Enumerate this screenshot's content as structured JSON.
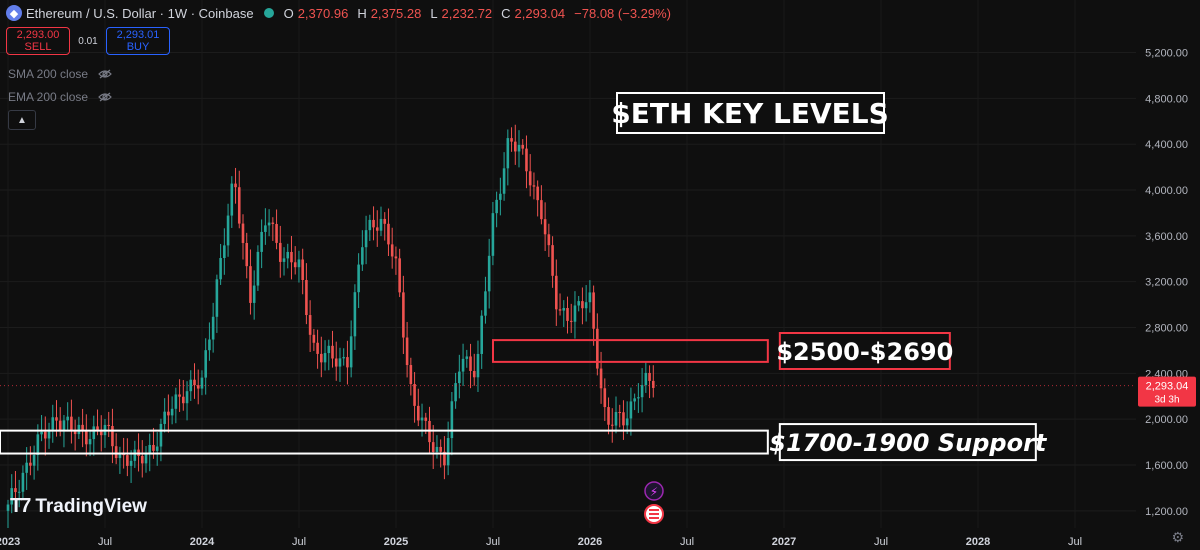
{
  "header": {
    "title": "Ethereum / U.S. Dollar · 1W · Coinbase",
    "ohlc": [
      {
        "label": "O",
        "value": "2,370.96"
      },
      {
        "label": "H",
        "value": "2,375.28"
      },
      {
        "label": "L",
        "value": "2,232.72"
      },
      {
        "label": "C",
        "value": "2,293.04"
      }
    ],
    "change": "−78.08 (−3.29%)"
  },
  "trade": {
    "sell_price": "2,293.00",
    "sell_label": "SELL",
    "spread": "0.01",
    "buy_price": "2,293.01",
    "buy_label": "BUY"
  },
  "indicators": [
    "SMA 200 close",
    "EMA 200 close"
  ],
  "branding": {
    "name": "TradingView"
  },
  "colors": {
    "up": "#26a69a",
    "down": "#ef5350",
    "annotation_red": "#f23645",
    "price_tag": "#f23645"
  },
  "chart_data": {
    "type": "candlestick",
    "title": "$ETH KEY LEVELS",
    "ylim": [
      1050,
      5650
    ],
    "yticks": [
      1200,
      1600,
      2000,
      2400,
      2800,
      3200,
      3600,
      4000,
      4400,
      4800,
      5200
    ],
    "ytick_labels": [
      "1,200.00",
      "1,600.00",
      "2,000.00",
      "2,400.00",
      "2,800.00",
      "3,200.00",
      "3,600.00",
      "4,000.00",
      "4,400.00",
      "4,800.00",
      "5,200.00"
    ],
    "xticks": [
      {
        "label": "2023",
        "date": "2023-01"
      },
      {
        "label": "Jul",
        "date": "2023-07"
      },
      {
        "label": "2024",
        "date": "2024-01"
      },
      {
        "label": "Jul",
        "date": "2024-07"
      },
      {
        "label": "2025",
        "date": "2025-01"
      },
      {
        "label": "Jul",
        "date": "2025-07"
      },
      {
        "label": "2026",
        "date": "2026-01"
      },
      {
        "label": "Jul",
        "date": "2026-07"
      },
      {
        "label": "2027",
        "date": "2027-01"
      },
      {
        "label": "Jul",
        "date": "2027-07"
      },
      {
        "label": "2028",
        "date": "2028-01"
      },
      {
        "label": "Jul",
        "date": "2028-07"
      }
    ],
    "last_price": {
      "value": 2293.04,
      "label": "2,293.04",
      "countdown": "3d 3h"
    },
    "zones": [
      {
        "label": "$2500-$2690",
        "low": 2500,
        "high": 2690,
        "start": "2025-07",
        "end": "2026-12",
        "color": "#f23645",
        "label_style": "normal"
      },
      {
        "label": "$1700-1900 Support",
        "low": 1700,
        "high": 1900,
        "start": "2022-12",
        "end": "2026-12",
        "color": "#ffffff",
        "label_style": "italic"
      }
    ],
    "close_path": [
      [
        "2023-01",
        1200
      ],
      [
        "2023-02",
        1580
      ],
      [
        "2023-03",
        1790
      ],
      [
        "2023-04",
        2050
      ],
      [
        "2023-05",
        1870
      ],
      [
        "2023-06",
        1900
      ],
      [
        "2023-07",
        1880
      ],
      [
        "2023-08",
        1700
      ],
      [
        "2023-09",
        1600
      ],
      [
        "2023-10",
        1800
      ],
      [
        "2023-11",
        2050
      ],
      [
        "2023-12",
        2300
      ],
      [
        "2024-01",
        2280
      ],
      [
        "2024-02",
        3300
      ],
      [
        "2024-03",
        4050
      ],
      [
        "2024-04",
        3100
      ],
      [
        "2024-05",
        3750
      ],
      [
        "2024-06",
        3450
      ],
      [
        "2024-07",
        3300
      ],
      [
        "2024-08",
        2600
      ],
      [
        "2024-09",
        2500
      ],
      [
        "2024-10",
        2550
      ],
      [
        "2024-11",
        3600
      ],
      [
        "2024-12",
        3800
      ],
      [
        "2025-01",
        3300
      ],
      [
        "2025-02",
        2200
      ],
      [
        "2025-03",
        1800
      ],
      [
        "2025-04",
        1700
      ],
      [
        "2025-05",
        2500
      ],
      [
        "2025-06",
        2480
      ],
      [
        "2025-07",
        3700
      ],
      [
        "2025-08",
        4500
      ],
      [
        "2025-09",
        4200
      ],
      [
        "2025-10",
        3850
      ],
      [
        "2025-11",
        2900
      ],
      [
        "2025-12",
        2970
      ],
      [
        "2026-01",
        3000
      ],
      [
        "2026-02",
        2000
      ],
      [
        "2026-03",
        1950
      ],
      [
        "2026-04",
        2300
      ],
      [
        "2026-05",
        2293
      ]
    ]
  }
}
